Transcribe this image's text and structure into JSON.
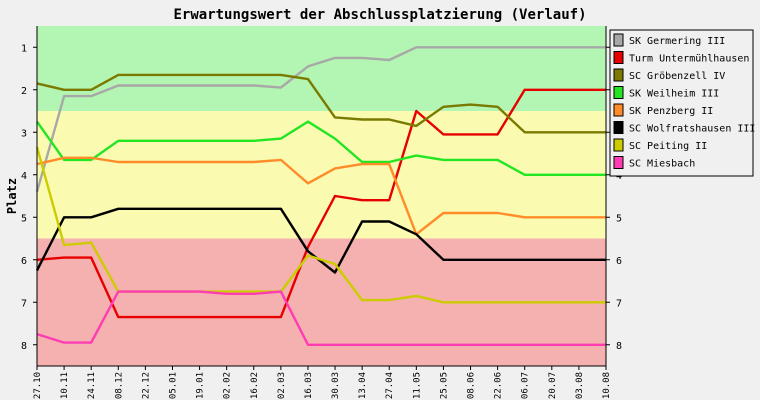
{
  "chart_data": {
    "type": "line",
    "title": "Erwartungswert der Abschlussplatzierung (Verlauf)",
    "ylabel": "Platz",
    "xlabel": "",
    "ylim": [
      1,
      8
    ],
    "y_inverted": true,
    "yticks": [
      "1",
      "2",
      "3",
      "4",
      "5",
      "6",
      "7",
      "8"
    ],
    "bands": [
      {
        "from": 0.5,
        "to": 2.5,
        "color": "#b3f5b3"
      },
      {
        "from": 2.5,
        "to": 5.5,
        "color": "#fafab0"
      },
      {
        "from": 5.5,
        "to": 8.5,
        "color": "#f5b0b0"
      }
    ],
    "categories": [
      "27.10",
      "10.11",
      "24.11",
      "08.12",
      "22.12",
      "05.01",
      "19.01",
      "02.02",
      "16.02",
      "02.03",
      "16.03",
      "30.03",
      "13.04",
      "27.04",
      "11.05",
      "25.05",
      "08.06",
      "22.06",
      "06.07",
      "20.07",
      "03.08",
      "10.08"
    ],
    "legend_position": "right",
    "series": [
      {
        "name": "SK Germering III",
        "color": "#a8a8a8",
        "values": [
          4.4,
          2.15,
          2.15,
          1.9,
          1.9,
          1.9,
          1.9,
          1.9,
          1.9,
          1.95,
          1.45,
          1.25,
          1.25,
          1.3,
          1.0,
          1.0,
          1.0,
          1.0,
          1.0,
          1.0,
          1.0,
          1.0
        ]
      },
      {
        "name": "Turm Untermühlhausen",
        "color": "#e60000",
        "values": [
          6.0,
          5.95,
          5.95,
          7.35,
          7.35,
          7.35,
          7.35,
          7.35,
          7.35,
          7.35,
          5.7,
          4.5,
          4.6,
          4.6,
          2.5,
          3.05,
          3.05,
          3.05,
          2.0,
          2.0,
          2.0,
          2.0
        ]
      },
      {
        "name": "SC Gröbenzell IV",
        "color": "#7a7a00",
        "values": [
          1.85,
          2.0,
          2.0,
          1.65,
          1.65,
          1.65,
          1.65,
          1.65,
          1.65,
          1.65,
          1.75,
          2.65,
          2.7,
          2.7,
          2.85,
          2.4,
          2.35,
          2.4,
          3.0,
          3.0,
          3.0,
          3.0
        ]
      },
      {
        "name": "SK Weilheim III",
        "color": "#22e622",
        "values": [
          2.75,
          3.65,
          3.65,
          3.2,
          3.2,
          3.2,
          3.2,
          3.2,
          3.2,
          3.15,
          2.75,
          3.15,
          3.7,
          3.7,
          3.55,
          3.65,
          3.65,
          3.65,
          4.0,
          4.0,
          4.0,
          4.0
        ]
      },
      {
        "name": "SK Penzberg II",
        "color": "#ff8c28",
        "values": [
          3.75,
          3.6,
          3.6,
          3.7,
          3.7,
          3.7,
          3.7,
          3.7,
          3.7,
          3.65,
          4.2,
          3.85,
          3.75,
          3.75,
          5.4,
          4.9,
          4.9,
          4.9,
          5.0,
          5.0,
          5.0,
          5.0
        ]
      },
      {
        "name": "SC Wolfratshausen III",
        "color": "#000000",
        "values": [
          6.25,
          5.0,
          5.0,
          4.8,
          4.8,
          4.8,
          4.8,
          4.8,
          4.8,
          4.8,
          5.8,
          6.3,
          5.1,
          5.1,
          5.4,
          6.0,
          6.0,
          6.0,
          6.0,
          6.0,
          6.0,
          6.0
        ]
      },
      {
        "name": "SC Peiting II",
        "color": "#cccc00",
        "values": [
          3.35,
          5.65,
          5.6,
          6.75,
          6.75,
          6.75,
          6.75,
          6.75,
          6.75,
          6.75,
          5.9,
          6.1,
          6.95,
          6.95,
          6.85,
          7.0,
          7.0,
          7.0,
          7.0,
          7.0,
          7.0,
          7.0
        ]
      },
      {
        "name": "SC Miesbach",
        "color": "#ff3cb4",
        "values": [
          7.75,
          7.95,
          7.95,
          6.75,
          6.75,
          6.75,
          6.75,
          6.8,
          6.8,
          6.75,
          8.0,
          8.0,
          8.0,
          8.0,
          8.0,
          8.0,
          8.0,
          8.0,
          8.0,
          8.0,
          8.0,
          8.0
        ]
      }
    ]
  }
}
